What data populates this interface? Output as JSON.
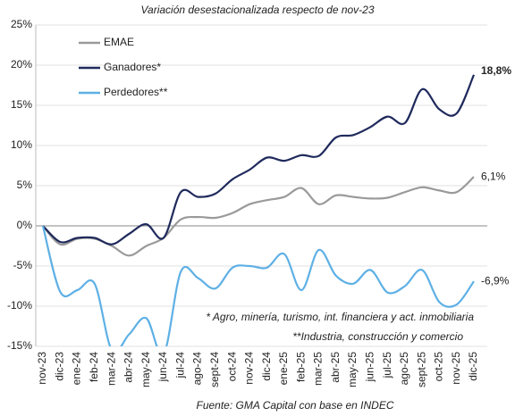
{
  "chart_data": {
    "type": "line",
    "title": "Variación desestacionalizada respecto de nov-23",
    "source": "Fuente: GMA Capital con base en INDEC",
    "annotations": [
      "* Agro, minería, turismo, int. financiera y act. inmobiliaria",
      "**Industria, construcción y comercio"
    ],
    "categories": [
      "nov-23",
      "dic-23",
      "ene-24",
      "feb-24",
      "mar-24",
      "abr-24",
      "may-24",
      "jun-24",
      "jul-24",
      "ago-24",
      "sept-24",
      "oct-24",
      "nov-24",
      "dic-24",
      "ene-25",
      "feb-25",
      "mar-25",
      "abr-25",
      "may-25",
      "jun-25",
      "jul-25",
      "ago-25",
      "sept-25",
      "oct-25",
      "nov-25",
      "dic-25"
    ],
    "series": [
      {
        "name": "EMAE",
        "color": "#9a9a9a",
        "values": [
          0,
          -2.3,
          -1.6,
          -1.6,
          -2.5,
          -3.7,
          -2.5,
          -1.5,
          0.8,
          1.1,
          1.0,
          1.6,
          2.7,
          3.2,
          3.6,
          4.7,
          2.7,
          3.8,
          3.6,
          3.4,
          3.5,
          4.2,
          4.8,
          4.4,
          4.2,
          6.1
        ],
        "value_labels": [
          null,
          null,
          null,
          null,
          null,
          null,
          null,
          null,
          null,
          null,
          null,
          null,
          null,
          null,
          null,
          null,
          null,
          null,
          null,
          null,
          null,
          null,
          null,
          null,
          null,
          "6,1%"
        ]
      },
      {
        "name": "Ganadores*",
        "color": "#1f2a5c",
        "values": [
          0,
          -2.0,
          -1.5,
          -1.5,
          -2.3,
          -1.0,
          0.2,
          -1.5,
          4.2,
          3.6,
          4.0,
          5.8,
          7.0,
          8.5,
          8.1,
          8.8,
          8.7,
          11.0,
          11.3,
          12.3,
          13.6,
          12.8,
          17.0,
          14.5,
          14.0,
          18.8
        ],
        "value_labels": [
          null,
          null,
          null,
          null,
          null,
          null,
          null,
          null,
          null,
          null,
          null,
          null,
          null,
          null,
          null,
          null,
          null,
          null,
          null,
          null,
          null,
          null,
          null,
          null,
          null,
          "18,8%"
        ]
      },
      {
        "name": "Perdedores**",
        "color": "#5eb0e5",
        "values": [
          0,
          -8.2,
          -8.0,
          -7.2,
          -15.5,
          -13.5,
          -11.5,
          -16.0,
          -5.7,
          -6.5,
          -7.8,
          -5.2,
          -5.0,
          -5.2,
          -3.5,
          -8.0,
          -3.0,
          -6.2,
          -7.2,
          -5.5,
          -8.3,
          -7.5,
          -5.5,
          -9.5,
          -9.8,
          -6.9
        ],
        "value_labels": [
          null,
          null,
          null,
          null,
          null,
          null,
          null,
          null,
          null,
          null,
          null,
          null,
          null,
          null,
          null,
          null,
          null,
          null,
          null,
          null,
          null,
          null,
          null,
          null,
          null,
          "-6,9%"
        ]
      }
    ],
    "ylim": [
      -15,
      25
    ],
    "yticks": [
      {
        "value": -15,
        "label": "-15%"
      },
      {
        "value": -10,
        "label": "-10%"
      },
      {
        "value": -5,
        "label": "-5%"
      },
      {
        "value": 0,
        "label": "0%"
      },
      {
        "value": 5,
        "label": "5%"
      },
      {
        "value": 10,
        "label": "10%"
      },
      {
        "value": 15,
        "label": "15%"
      },
      {
        "value": 20,
        "label": "20%"
      },
      {
        "value": 25,
        "label": "25%"
      }
    ],
    "grid": true,
    "legend": "upper left"
  }
}
